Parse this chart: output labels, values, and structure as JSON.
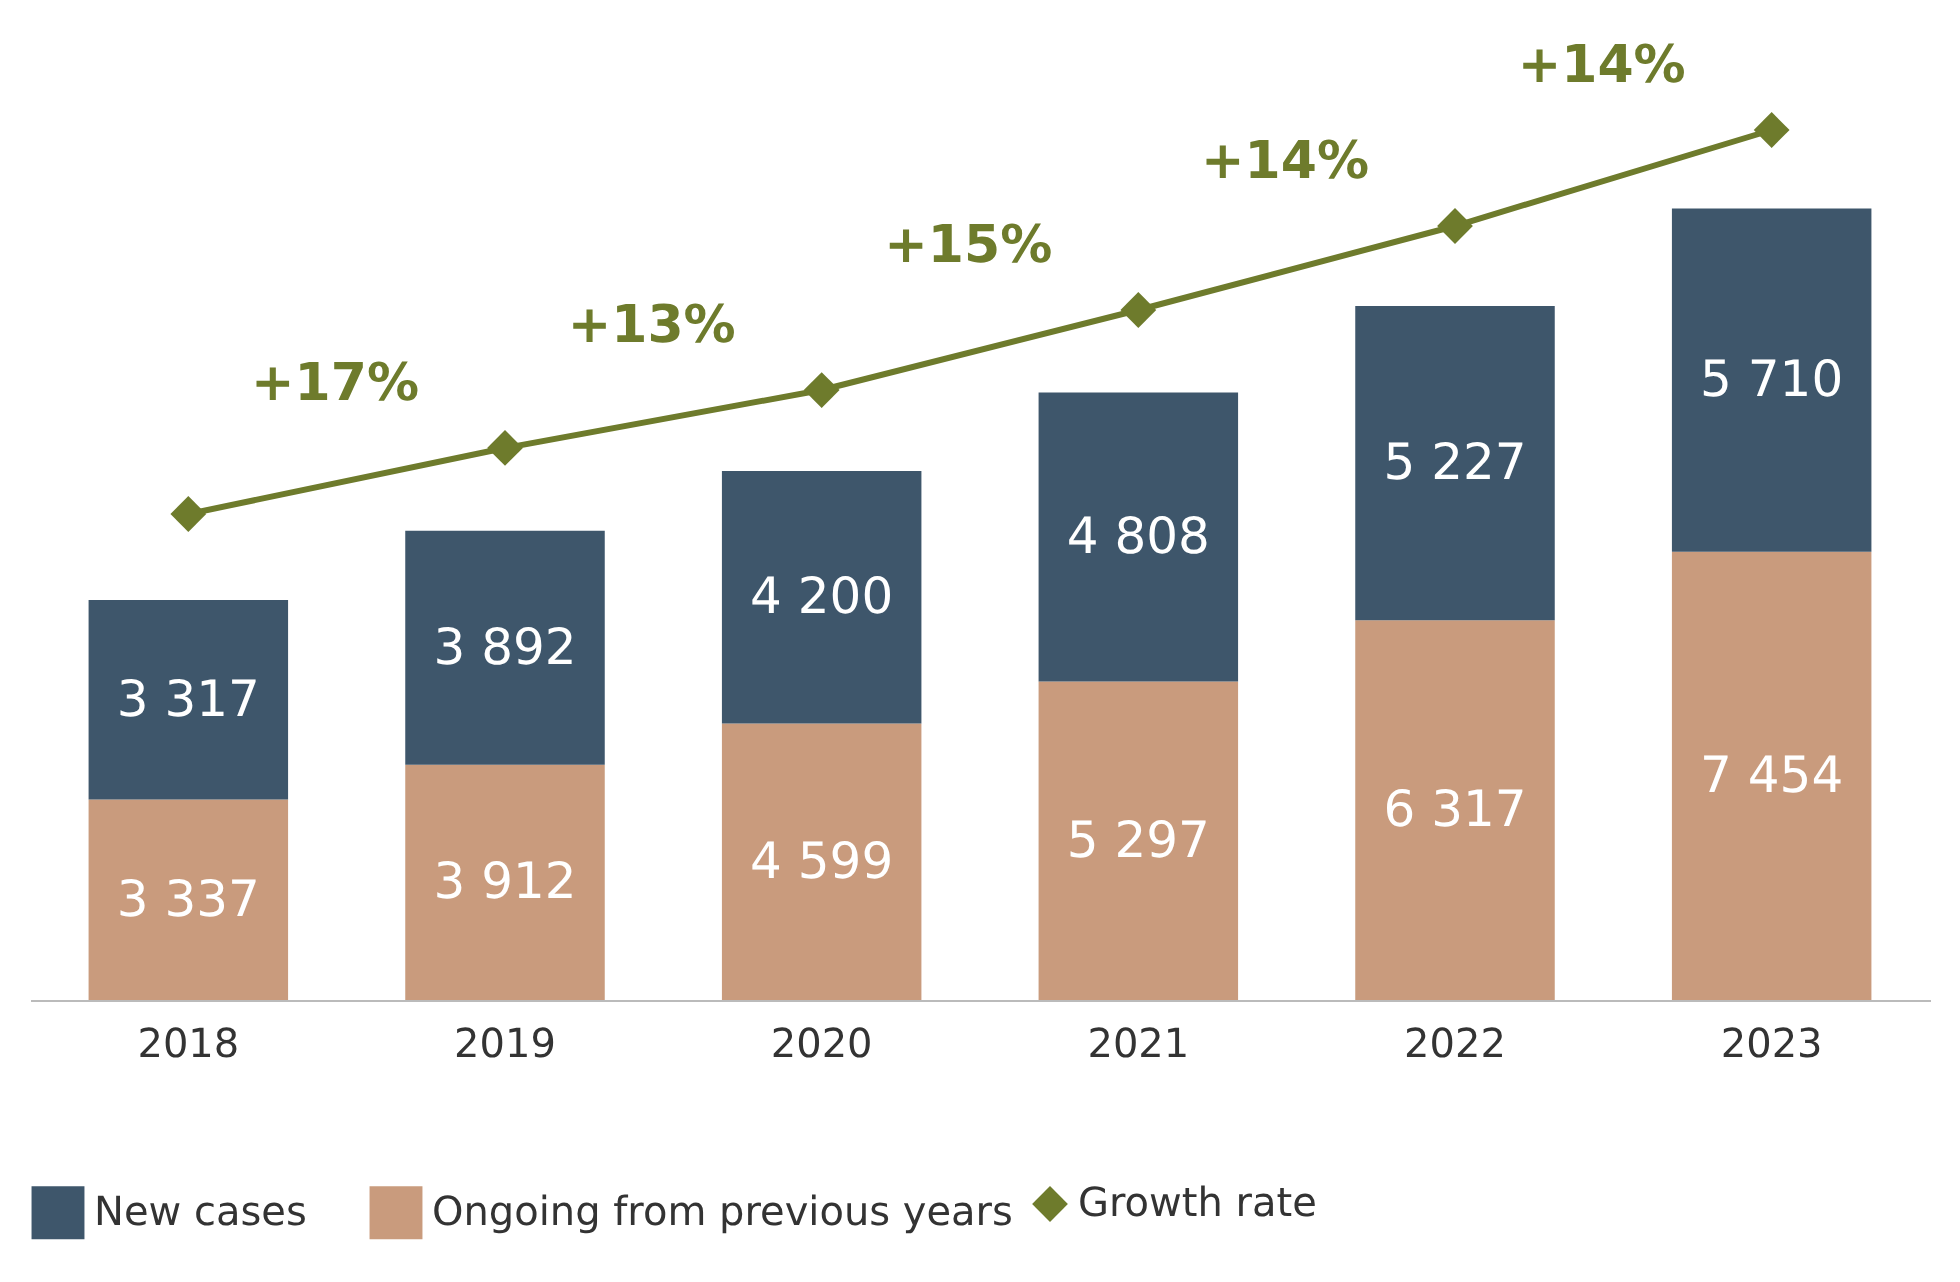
{
  "chart_data": {
    "type": "bar",
    "stacked": true,
    "categories": [
      "2018",
      "2019",
      "2020",
      "2021",
      "2022",
      "2023"
    ],
    "tick_labels": "x",
    "grid": false,
    "legend": "bottom",
    "series": [
      {
        "name": "Ongoing from previous years",
        "color": "#c99b7d",
        "values": [
          3337,
          3912,
          4599,
          5297,
          6317,
          7454
        ],
        "value_labels": [
          "3 337",
          "3 912",
          "4 599",
          "5 297",
          "6 317",
          "7 454"
        ]
      },
      {
        "name": "New cases",
        "color": "#3e566b",
        "values": [
          3317,
          3892,
          4200,
          4808,
          5227,
          5710
        ],
        "value_labels": [
          "3 317",
          "3 892",
          "4 200",
          "4 808",
          "5 227",
          "5 710"
        ]
      },
      {
        "name": "Growth rate",
        "type": "line",
        "color": "#6e7b2c",
        "marker": "diamond",
        "line_style": "solid",
        "values": [
          8084,
          9182,
          10146,
          11477,
          12874,
          14471
        ]
      }
    ],
    "annotations": [
      {
        "text": "+17%",
        "x": "2019",
        "y": 9182
      },
      {
        "text": "+13%",
        "x": "2020",
        "y": 10146
      },
      {
        "text": "+15%",
        "x": "2021",
        "y": 11477
      },
      {
        "text": "+14%",
        "x": "2022",
        "y": 12874
      },
      {
        "text": "+14%",
        "x": "2023",
        "y": 14471
      }
    ]
  }
}
